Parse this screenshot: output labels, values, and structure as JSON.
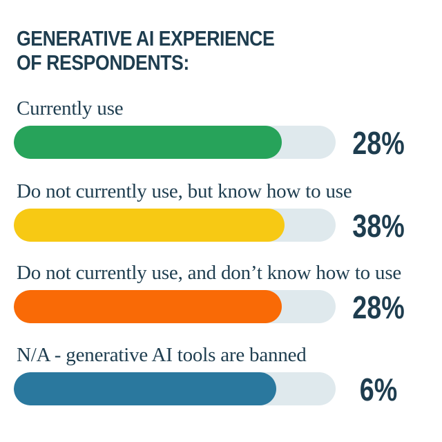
{
  "chart_data": {
    "type": "bar",
    "orientation": "horizontal",
    "title": "GENERATIVE AI EXPERIENCE OF RESPONDENTS:",
    "title_lines": [
      "GENERATIVE AI EXPERIENCE",
      "OF RESPONDENTS:"
    ],
    "categories": [
      "Currently use",
      "Do not currently use, but know how to use",
      "Do not currently use, and don’t know how to use",
      "N/A - generative AI tools are banned"
    ],
    "values": [
      28,
      38,
      28,
      6
    ],
    "value_labels": [
      "28%",
      "38%",
      "28%",
      "6%"
    ],
    "colors": [
      "#27a35a",
      "#f7c914",
      "#f96a06",
      "#2a789e"
    ],
    "track_color": "#dfe9ed",
    "legend": "none",
    "grid": false
  }
}
